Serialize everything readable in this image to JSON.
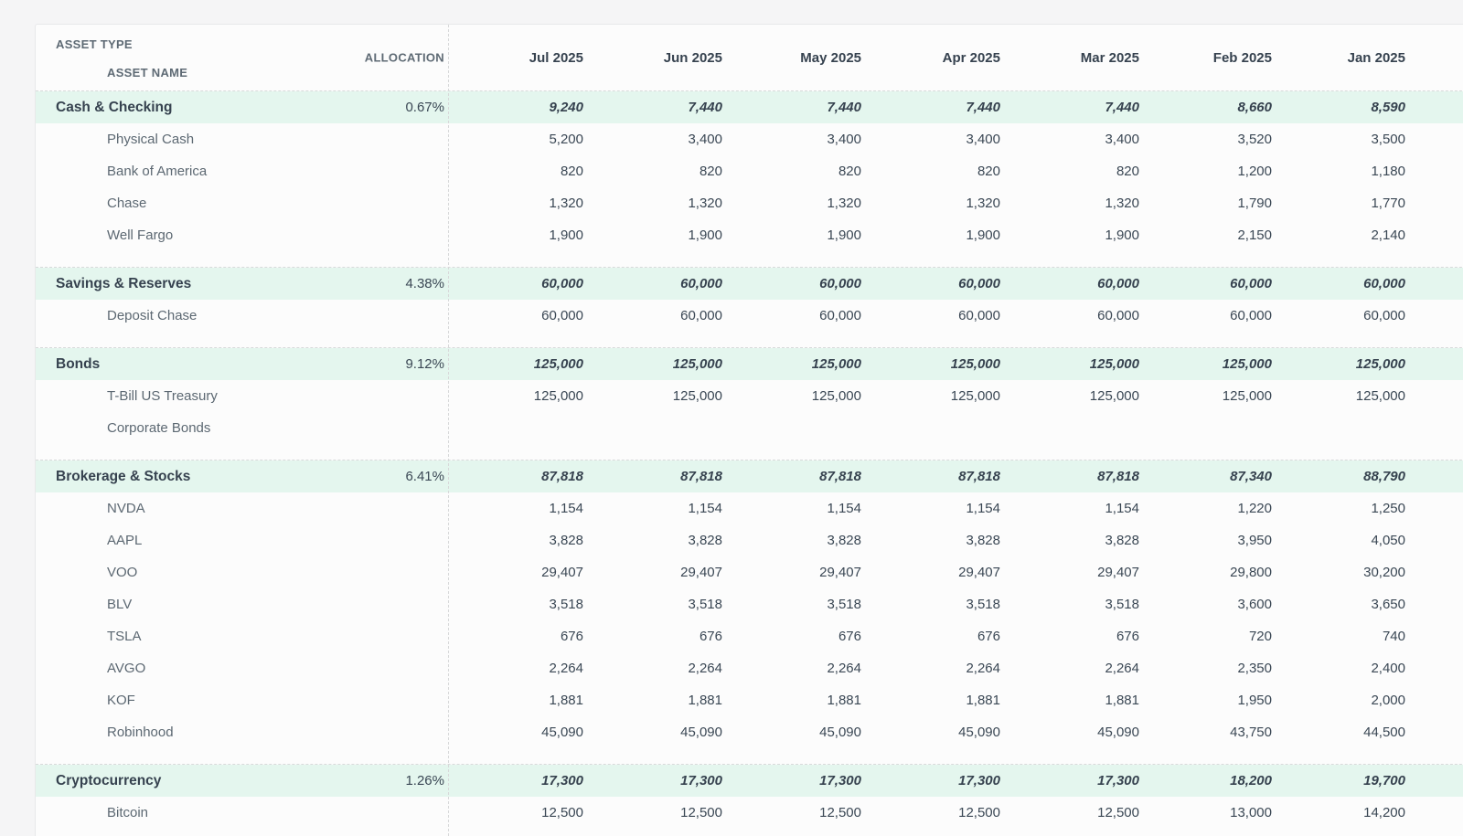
{
  "colors": {
    "page_background": "#f5f5f6",
    "card_background": "#fcfcfc",
    "group_row_background": "#e4f6ee",
    "dark_text": "#36424f",
    "gray_text": "#5c6872",
    "dashed_border": "#d8d9da"
  },
  "table": {
    "header": {
      "asset_type_label": "ASSET TYPE",
      "asset_name_label": "ASSET NAME",
      "allocation_label": "ALLOCATION",
      "months": [
        "Jul 2025",
        "Jun 2025",
        "May 2025",
        "Apr 2025",
        "Mar 2025",
        "Feb 2025",
        "Jan 2025"
      ]
    },
    "groups": [
      {
        "name": "Cash & Checking",
        "allocation": "0.67%",
        "values": [
          "9,240",
          "7,440",
          "7,440",
          "7,440",
          "7,440",
          "8,660",
          "8,590"
        ],
        "children": [
          {
            "name": "Physical Cash",
            "values": [
              "5,200",
              "3,400",
              "3,400",
              "3,400",
              "3,400",
              "3,520",
              "3,500"
            ]
          },
          {
            "name": "Bank of America",
            "values": [
              "820",
              "820",
              "820",
              "820",
              "820",
              "1,200",
              "1,180"
            ]
          },
          {
            "name": "Chase",
            "values": [
              "1,320",
              "1,320",
              "1,320",
              "1,320",
              "1,320",
              "1,790",
              "1,770"
            ]
          },
          {
            "name": "Well Fargo",
            "values": [
              "1,900",
              "1,900",
              "1,900",
              "1,900",
              "1,900",
              "2,150",
              "2,140"
            ]
          }
        ]
      },
      {
        "name": "Savings & Reserves",
        "allocation": "4.38%",
        "values": [
          "60,000",
          "60,000",
          "60,000",
          "60,000",
          "60,000",
          "60,000",
          "60,000"
        ],
        "children": [
          {
            "name": "Deposit Chase",
            "values": [
              "60,000",
              "60,000",
              "60,000",
              "60,000",
              "60,000",
              "60,000",
              "60,000"
            ]
          }
        ]
      },
      {
        "name": "Bonds",
        "allocation": "9.12%",
        "values": [
          "125,000",
          "125,000",
          "125,000",
          "125,000",
          "125,000",
          "125,000",
          "125,000"
        ],
        "children": [
          {
            "name": "T-Bill US Treasury",
            "values": [
              "125,000",
              "125,000",
              "125,000",
              "125,000",
              "125,000",
              "125,000",
              "125,000"
            ]
          },
          {
            "name": "Corporate Bonds",
            "values": [
              "",
              "",
              "",
              "",
              "",
              "",
              ""
            ]
          }
        ]
      },
      {
        "name": "Brokerage & Stocks",
        "allocation": "6.41%",
        "values": [
          "87,818",
          "87,818",
          "87,818",
          "87,818",
          "87,818",
          "87,340",
          "88,790"
        ],
        "children": [
          {
            "name": "NVDA",
            "values": [
              "1,154",
              "1,154",
              "1,154",
              "1,154",
              "1,154",
              "1,220",
              "1,250"
            ]
          },
          {
            "name": "AAPL",
            "values": [
              "3,828",
              "3,828",
              "3,828",
              "3,828",
              "3,828",
              "3,950",
              "4,050"
            ]
          },
          {
            "name": "VOO",
            "values": [
              "29,407",
              "29,407",
              "29,407",
              "29,407",
              "29,407",
              "29,800",
              "30,200"
            ]
          },
          {
            "name": "BLV",
            "values": [
              "3,518",
              "3,518",
              "3,518",
              "3,518",
              "3,518",
              "3,600",
              "3,650"
            ]
          },
          {
            "name": "TSLA",
            "values": [
              "676",
              "676",
              "676",
              "676",
              "676",
              "720",
              "740"
            ]
          },
          {
            "name": "AVGO",
            "values": [
              "2,264",
              "2,264",
              "2,264",
              "2,264",
              "2,264",
              "2,350",
              "2,400"
            ]
          },
          {
            "name": "KOF",
            "values": [
              "1,881",
              "1,881",
              "1,881",
              "1,881",
              "1,881",
              "1,950",
              "2,000"
            ]
          },
          {
            "name": "Robinhood",
            "values": [
              "45,090",
              "45,090",
              "45,090",
              "45,090",
              "45,090",
              "43,750",
              "44,500"
            ]
          }
        ]
      },
      {
        "name": "Cryptocurrency",
        "allocation": "1.26%",
        "values": [
          "17,300",
          "17,300",
          "17,300",
          "17,300",
          "17,300",
          "18,200",
          "19,700"
        ],
        "children": [
          {
            "name": "Bitcoin",
            "values": [
              "12,500",
              "12,500",
              "12,500",
              "12,500",
              "12,500",
              "13,000",
              "14,200"
            ]
          }
        ]
      }
    ]
  }
}
